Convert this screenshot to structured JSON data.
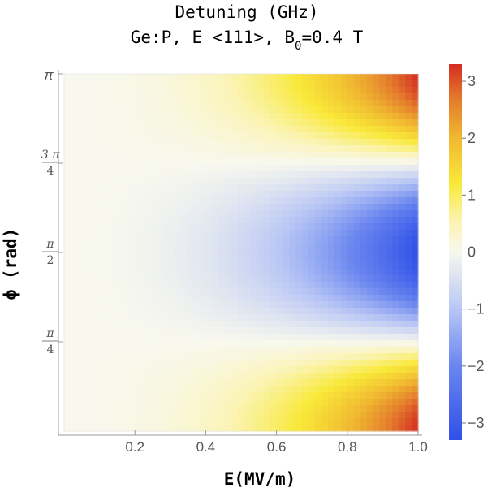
{
  "chart_data": {
    "type": "heatmap",
    "title": "Detuning (GHz)",
    "subtitle_prefix": "Ge:P, E <111>, B",
    "subtitle_sub": "0",
    "subtitle_suffix": "=0.4 T",
    "xlabel": "E(MV/m)",
    "ylabel": "ϕ (rad)",
    "xlim": [
      0,
      1.0
    ],
    "ylim": [
      0,
      3.14159
    ],
    "x_ticks": [
      {
        "value": 0.2,
        "label": "0.2"
      },
      {
        "value": 0.4,
        "label": "0.4"
      },
      {
        "value": 0.6,
        "label": "0.6"
      },
      {
        "value": 0.8,
        "label": "0.8"
      },
      {
        "value": 1.0,
        "label": "1.0"
      }
    ],
    "y_ticks": [
      {
        "value": 0.785398,
        "num": "π",
        "den": "4"
      },
      {
        "value": 1.570796,
        "num": "π",
        "den": "2"
      },
      {
        "value": 2.356194,
        "num": "3 π",
        "den": "4"
      },
      {
        "value": 3.141593,
        "label": "π"
      }
    ],
    "colorbar": {
      "range": [
        -3.3,
        3.3
      ],
      "ticks": [
        {
          "value": 3,
          "label": "3"
        },
        {
          "value": 2,
          "label": "2"
        },
        {
          "value": 1,
          "label": "1"
        },
        {
          "value": 0,
          "label": "0"
        },
        {
          "value": -1,
          "label": "−1"
        },
        {
          "value": -2,
          "label": "−2"
        },
        {
          "value": -3,
          "label": "−3"
        }
      ],
      "stops": [
        {
          "value": -3.3,
          "color": "#3050e8"
        },
        {
          "value": -2.0,
          "color": "#6a86ef"
        },
        {
          "value": -1.0,
          "color": "#b8c6f5"
        },
        {
          "value": 0.0,
          "color": "#f8f8ee"
        },
        {
          "value": 0.5,
          "color": "#fbf4b8"
        },
        {
          "value": 1.2,
          "color": "#f9e93a"
        },
        {
          "value": 2.0,
          "color": "#f0b830"
        },
        {
          "value": 2.7,
          "color": "#e47a2c"
        },
        {
          "value": 3.3,
          "color": "#d42e22"
        }
      ]
    },
    "model": {
      "description_free": true,
      "amplitude": 3.3,
      "power": 2.4
    }
  }
}
